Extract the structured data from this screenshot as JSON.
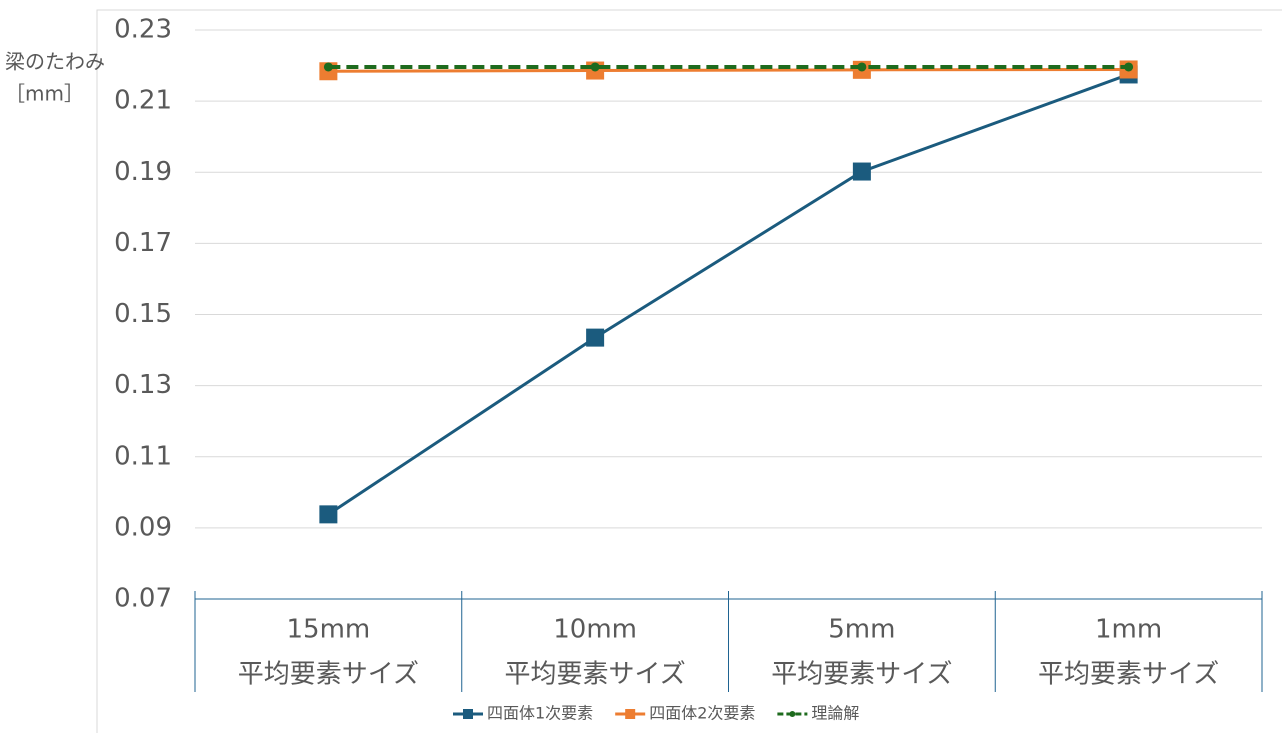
{
  "chart_data": {
    "type": "line",
    "y_label": [
      "梁のたわみ",
      "［mm］"
    ],
    "categories": [
      [
        "15mm",
        "平均要素サイズ"
      ],
      [
        "10mm",
        "平均要素サイズ"
      ],
      [
        "5mm",
        "平均要素サイズ"
      ],
      [
        "1mm",
        "平均要素サイズ"
      ]
    ],
    "series": [
      {
        "name": "四面体1次要素",
        "color": "#1b5b7e",
        "marker": "square",
        "dash": false,
        "values": [
          0.0938,
          0.1435,
          0.1902,
          0.2175
        ]
      },
      {
        "name": "四面体2次要素",
        "color": "#ed7d31",
        "marker": "square",
        "dash": false,
        "values": [
          0.2184,
          0.2186,
          0.2188,
          0.2189
        ]
      },
      {
        "name": "理論解",
        "color": "#1e6b1e",
        "marker": "dot",
        "dash": true,
        "values": [
          0.2196,
          0.2196,
          0.2196,
          0.2196
        ]
      }
    ],
    "ylim": [
      0.07,
      0.23
    ],
    "yticks": [
      0.07,
      0.09,
      0.11,
      0.13,
      0.15,
      0.17,
      0.19,
      0.21,
      0.23
    ],
    "grid": true,
    "legend": "bottom"
  }
}
